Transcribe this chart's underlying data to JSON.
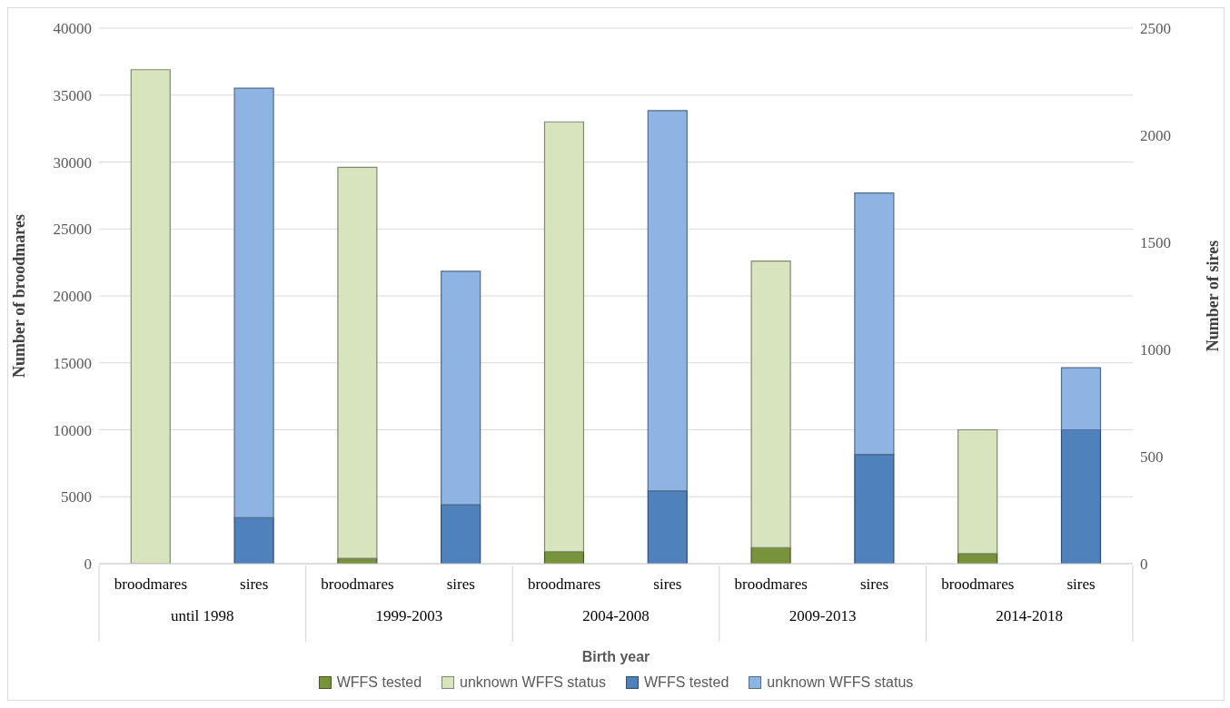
{
  "chart_data": {
    "type": "bar",
    "stacked": true,
    "xlabel": "Birth year",
    "ylabel": "Number of broodmares",
    "y2label": "Number of sires",
    "categories": [
      "broodmares",
      "sires",
      "broodmares",
      "sires",
      "broodmares",
      "sires",
      "broodmares",
      "sires",
      "broodmares",
      "sires"
    ],
    "annotations": [
      "until 1998",
      "1999-2003",
      "2004-2008",
      "2009-2013",
      "2014-2018"
    ],
    "series": [
      {
        "name": "WFFS tested",
        "color": "#77933c",
        "values": [
          0,
          null,
          400,
          null,
          900,
          null,
          1200,
          null,
          750,
          null
        ]
      },
      {
        "name": "unknown WFFS status",
        "color": "#d7e4bd",
        "values": [
          36900,
          null,
          29200,
          null,
          32100,
          null,
          21400,
          null,
          9250,
          null
        ]
      },
      {
        "name": "WFFS tested",
        "color": "#4f81bd",
        "axis": "y2",
        "values": [
          null,
          215,
          null,
          275,
          null,
          340,
          null,
          510,
          null,
          625
        ]
      },
      {
        "name": "unknown WFFS status",
        "color": "#8eb4e3",
        "axis": "y2",
        "values": [
          null,
          2005,
          null,
          1090,
          null,
          1775,
          null,
          1220,
          null,
          290
        ]
      }
    ],
    "ylim": [
      0,
      40000
    ],
    "yticks": [
      0,
      5000,
      10000,
      15000,
      20000,
      25000,
      30000,
      35000,
      40000
    ],
    "y2lim": [
      0,
      2500
    ],
    "y2ticks": [
      0,
      500,
      1000,
      1500,
      2000,
      2500
    ],
    "grid": "y",
    "legend": "bottom"
  }
}
